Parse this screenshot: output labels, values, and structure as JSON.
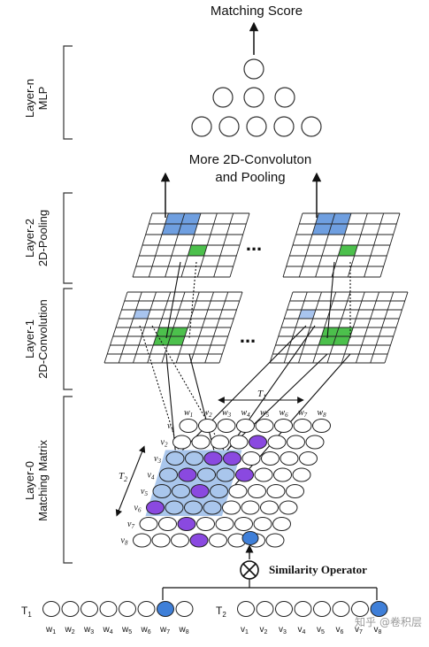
{
  "top": {
    "matching_score": "Matching Score",
    "more_conv_line1": "More 2D-Convoluton",
    "more_conv_line2": "and Pooling",
    "ellipsis": "..."
  },
  "layers": {
    "layer_n": {
      "line1": "Layer-n",
      "line2": "MLP"
    },
    "layer_2": {
      "line1": "Layer-2",
      "line2": "2D-Pooling"
    },
    "layer_1": {
      "line1": "Layer-1",
      "line2": "2D-Convolution"
    },
    "layer_0": {
      "line1": "Layer-0",
      "line2": "Matching Matrix"
    }
  },
  "matrix": {
    "t1_label": "T",
    "t1_sub": "1",
    "t2_label": "T",
    "t2_sub": "2",
    "col_labels": [
      {
        "b": "w",
        "s": "1"
      },
      {
        "b": "w",
        "s": "2"
      },
      {
        "b": "w",
        "s": "3"
      },
      {
        "b": "w",
        "s": "4"
      },
      {
        "b": "w",
        "s": "5"
      },
      {
        "b": "w",
        "s": "6"
      },
      {
        "b": "w",
        "s": "7"
      },
      {
        "b": "w",
        "s": "8"
      }
    ],
    "row_labels": [
      {
        "b": "v",
        "s": "1"
      },
      {
        "b": "v",
        "s": "2"
      },
      {
        "b": "v",
        "s": "3"
      },
      {
        "b": "v",
        "s": "4"
      },
      {
        "b": "v",
        "s": "5"
      },
      {
        "b": "v",
        "s": "6"
      },
      {
        "b": "v",
        "s": "7"
      },
      {
        "b": "v",
        "s": "8"
      }
    ]
  },
  "operator": {
    "label": "Similarity Operator",
    "symbol": "⊗"
  },
  "bottom": {
    "t1_label": "T",
    "t1_sub": "1",
    "t2_label": "T",
    "t2_sub": "2",
    "t1_words": [
      {
        "b": "w",
        "s": "1"
      },
      {
        "b": "w",
        "s": "2"
      },
      {
        "b": "w",
        "s": "3"
      },
      {
        "b": "w",
        "s": "4"
      },
      {
        "b": "w",
        "s": "5"
      },
      {
        "b": "w",
        "s": "6"
      },
      {
        "b": "w",
        "s": "7"
      },
      {
        "b": "w",
        "s": "8"
      }
    ],
    "t2_words": [
      {
        "b": "v",
        "s": "1"
      },
      {
        "b": "v",
        "s": "2"
      },
      {
        "b": "v",
        "s": "3"
      },
      {
        "b": "v",
        "s": "4"
      },
      {
        "b": "v",
        "s": "5"
      },
      {
        "b": "v",
        "s": "6"
      },
      {
        "b": "v",
        "s": "7"
      },
      {
        "b": "v",
        "s": "8"
      }
    ]
  },
  "watermark": "知乎 @卷积层",
  "colors": {
    "blue_cell": "#6f9fe0",
    "light_blue_cell": "#a8c4ee",
    "green_cell": "#4cc04c",
    "purple_node": "#8a49e0",
    "blue_node": "#3f7fd8",
    "highlight_region": "#a9c6ec"
  }
}
